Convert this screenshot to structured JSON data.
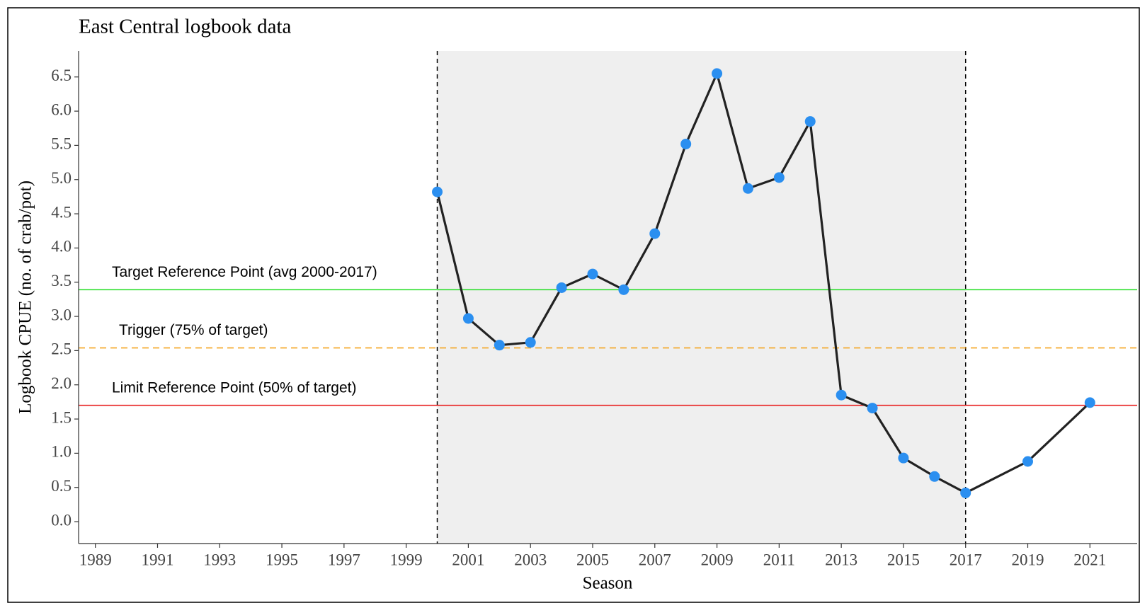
{
  "chart_data": {
    "type": "line",
    "title": "East Central logbook data",
    "x_label": "Season",
    "y_label": "Logbook CPUE (no. of crab/pot)",
    "x": [
      2000,
      2001,
      2002,
      2003,
      2004,
      2005,
      2006,
      2007,
      2008,
      2009,
      2010,
      2011,
      2012,
      2013,
      2014,
      2015,
      2016,
      2017,
      2019,
      2021
    ],
    "series": [
      {
        "name": "Logbook CPUE",
        "color": "#2b8ff0",
        "line_color": "#222222",
        "values": [
          4.82,
          2.97,
          2.58,
          2.62,
          3.42,
          3.62,
          3.39,
          4.21,
          5.52,
          6.55,
          4.87,
          5.03,
          5.85,
          1.85,
          1.66,
          0.93,
          0.66,
          0.42,
          0.88,
          1.74
        ]
      }
    ],
    "xlim": [
      1988.46,
      2022.52
    ],
    "ylim": [
      -0.32,
      6.88
    ],
    "xticks": [
      1989,
      1991,
      1993,
      1995,
      1997,
      1999,
      2001,
      2003,
      2005,
      2007,
      2009,
      2011,
      2013,
      2015,
      2017,
      2019,
      2021
    ],
    "yticks": [
      {
        "value": 0,
        "label": "0.0"
      },
      0.5,
      {
        "value": 1,
        "label": "1.0"
      },
      1.5,
      {
        "value": 2,
        "label": "2.0"
      },
      2.5,
      {
        "value": 3,
        "label": "3.0"
      },
      3.5,
      {
        "value": 4,
        "label": "4.0"
      },
      4.5,
      {
        "value": 5,
        "label": "5.0"
      },
      5.5,
      {
        "value": 6,
        "label": "6.0"
      },
      6.5
    ],
    "shaded_range": [
      2000,
      2017
    ],
    "reference_lines": [
      {
        "label": "Target Reference Point (avg 2000-2017)",
        "value": 3.39,
        "color": "#22dd22",
        "dashed": false
      },
      {
        "label": "Trigger (75% of target)",
        "value": 2.54,
        "color": "#f5a623",
        "dashed": true
      },
      {
        "label": "Limit Reference Point (50% of target)",
        "value": 1.7,
        "color": "#e82020",
        "dashed": false
      }
    ]
  }
}
